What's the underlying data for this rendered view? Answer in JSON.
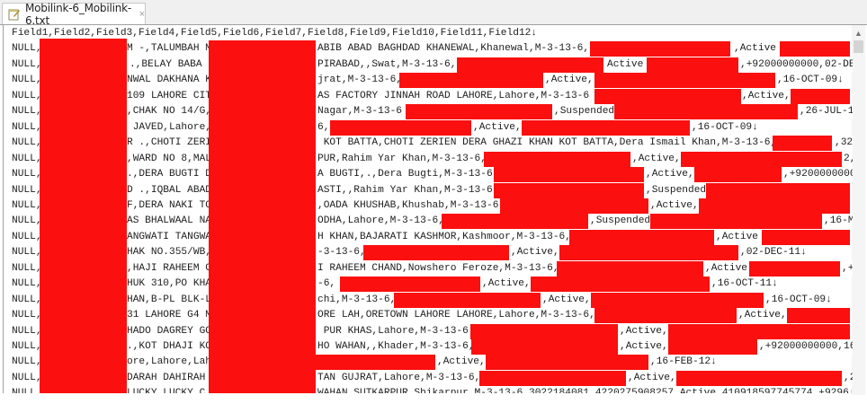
{
  "tab": {
    "title": "Mobilink-6_Mobilink-6.txt",
    "close": "×",
    "icon": "notepad-file-icon"
  },
  "colors": {
    "redaction": "#fb0f0f",
    "eol_marker": "#6a9fd4"
  },
  "rows": [
    [
      "Field1,Field2,Field3,Field4,Field5,Field6,Field7,Field8,Field9,Field10,Field11,Field12↓"
    ],
    [
      "NULL,",
      "M -,TALUMBAH M",
      "ABIB ABAD BAGHDAD KHANEWAL,Khanewal,M-3-13-6,",
      ",Active"
    ],
    [
      "NULL,",
      ".,BELAY BABA",
      "PIRABAD,,Swat,M-3-13-6,",
      "Active",
      ",+92000000000,02-DE"
    ],
    [
      "NULL,",
      "NWAL DAKHANA K",
      "jrat,M-3-13-6,",
      ",Active,",
      ",16-OCT-09↓"
    ],
    [
      "NULL,",
      "109 LAHORE CIT",
      "AS FACTORY JINNAH ROAD LAHORE,Lahore,M-3-13-6",
      ",Active,"
    ],
    [
      "NULL,",
      ",CHAK NO 14/G,",
      "Nagar,M-3-13-6",
      ",Suspended",
      ",26-JUL-1"
    ],
    [
      "NULL,",
      " JAVED,Lahore,",
      "6,",
      ",Active,",
      ",16-OCT-09↓"
    ],
    [
      "NULL,",
      "R .,CHOTI ZERI",
      " KOT BATTA,CHOTI ZERIEN DERA GHAZI KHAN KOT BATTA,Dera Ismail Khan,M-3-13-6,",
      ",32"
    ],
    [
      "NULL,",
      ",WARD NO 8,MAL",
      "PUR,Rahim Yar Khan,M-3-13-6,",
      ",Active,",
      "2,"
    ],
    [
      "NULL,",
      ".,DERA BUGTI D",
      "A BUGTI,.,Dera Bugti,M-3-13-6,",
      ",Active,",
      ",+9200000000"
    ],
    [
      "NULL,",
      "D .,IQBAL ABAD",
      "ASTI,,Rahim Yar Khan,M-3-13-6,",
      ",Suspended"
    ],
    [
      "NULL,",
      "F,DERA NAKI TO",
      ",OADA KHUSHAB,Khushab,M-3-13-6,",
      ",Active,"
    ],
    [
      "NULL,",
      "AS BHALWAAL NA",
      "ODHA,Lahore,M-3-13-6,",
      ",Suspended",
      ",16-M"
    ],
    [
      "NULL,",
      "ANGWATI TANGWA",
      "H KHAN,BAJARATI KASHMOR,Kashmoor,M-3-13-6,",
      ",Active"
    ],
    [
      "NULL,",
      "HAK NO.355/WB,",
      "-3-13-6,",
      ",Active,",
      ",02-DEC-11↓"
    ],
    [
      "NULL,",
      ",HAJI RAHEEM C",
      "I RAHEEM CHAND,Nowshero Feroze,M-3-13-6,",
      ",Active",
      ",+"
    ],
    [
      "NULL,",
      "HUK 310,PO KHA",
      "-6,",
      ",Active,",
      ",16-OCT-11↓"
    ],
    [
      "NULL,",
      "HAN,B-PL BLK-L",
      "chi,M-3-13-6,",
      ",Active,",
      ",16-OCT-09↓"
    ],
    [
      "NULL,",
      "31 LAHORE G4 M",
      "ORE LAH,ORETOWN LAHORE LAHORE,Lahore,M-3-13-6,",
      ",Active,"
    ],
    [
      "NULL,",
      "HADO DAGREY GO",
      " PUR KHAS,Lahore,M-3-13-6",
      ",Active,"
    ],
    [
      "NULL,",
      ".,KOT DHAJI KO",
      "HO WAHAN,,Khader,M-3-13-6,",
      ",Active,",
      ",+92000000000,16"
    ],
    [
      "NULL,",
      "ore,Lahore,Lah",
      ",Active,",
      ",16-FEB-12↓"
    ],
    [
      "NULL,",
      "DARAH DAHIRAH ",
      "TAN GUJRAT,Lahore,M-3-13-6,",
      ",Active,",
      ",2"
    ],
    [
      "NULL,",
      "LUCKY LUCKY C",
      "WAHAN SUTKARPUR,Shikarpur,M-3-13-6,3022184081,4220275908257,Active,410918597745774,+9296↓"
    ]
  ]
}
